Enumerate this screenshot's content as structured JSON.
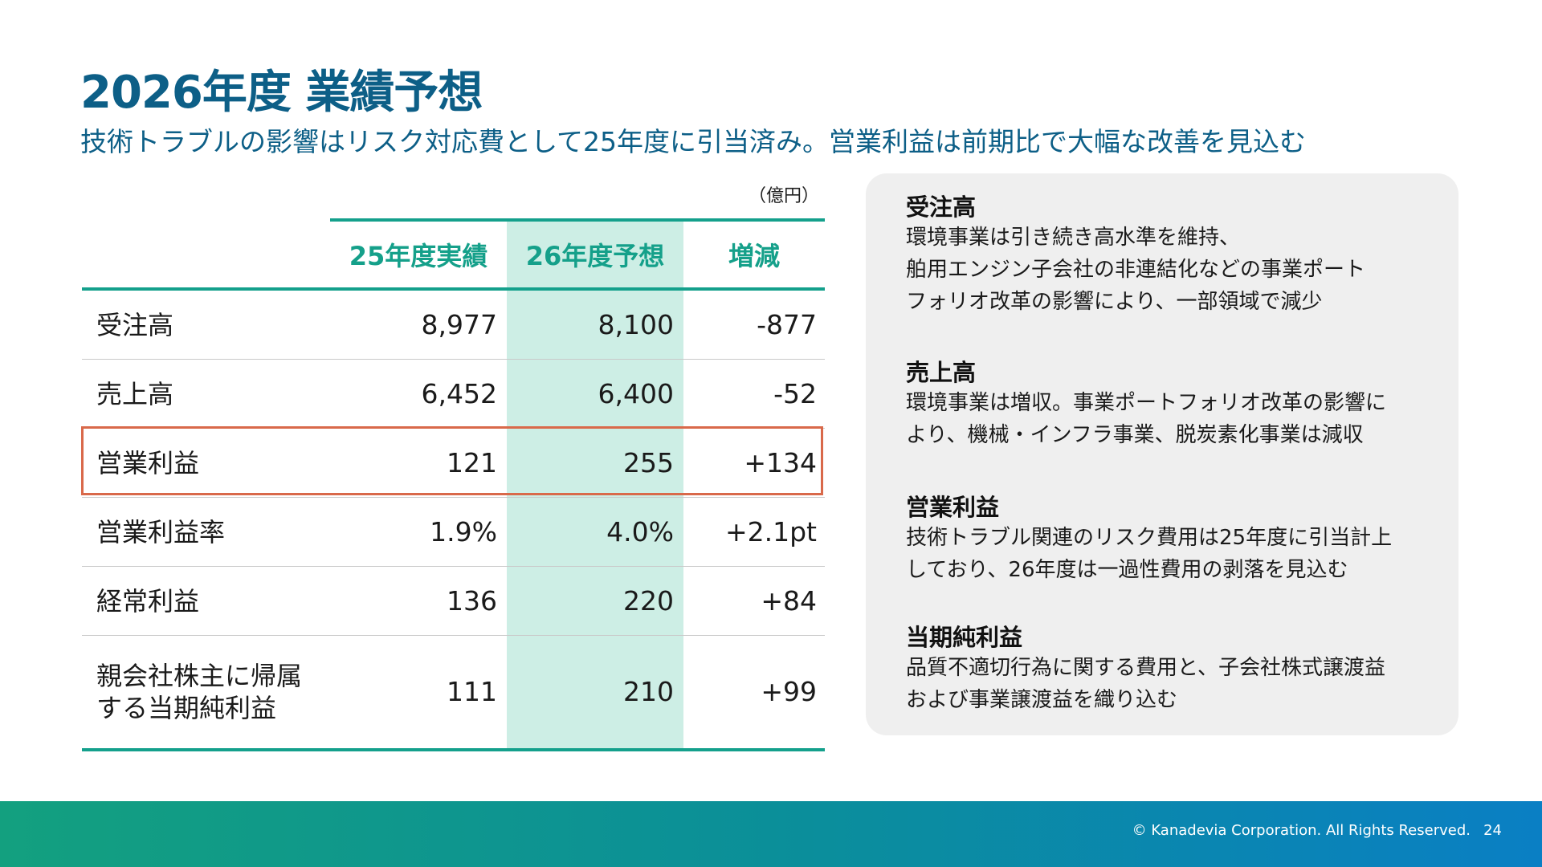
{
  "title": "2026年度 業績予想",
  "subtitle": "技術トラブルの影響はリスク対応費として25年度に引当済み。営業利益は前期比で大幅な改善を見込む",
  "unit": "（億円）",
  "table": {
    "headers": [
      "25年度実績",
      "26年度予想",
      "増減"
    ],
    "rows": [
      {
        "label": "受注高",
        "v1": "8,977",
        "v2": "8,100",
        "v3": "-877"
      },
      {
        "label": "売上高",
        "v1": "6,452",
        "v2": "6,400",
        "v3": "-52"
      },
      {
        "label": "営業利益",
        "v1": "121",
        "v2": "255",
        "v3": "+134"
      },
      {
        "label": "営業利益率",
        "v1": "1.9%",
        "v2": "4.0%",
        "v3": "+2.1pt"
      },
      {
        "label": "経常利益",
        "v1": "136",
        "v2": "220",
        "v3": "+84"
      },
      {
        "label": "親会社株主に帰属\nする当期純利益",
        "v1": "111",
        "v2": "210",
        "v3": "+99"
      }
    ]
  },
  "notes": [
    {
      "heading": "受注高",
      "body": "環境事業は引き続き高水準を維持、\n舶用エンジン子会社の非連結化などの事業ポート\nフォリオ改革の影響により、一部領域で減少"
    },
    {
      "heading": "売上高",
      "body": "環境事業は増収。事業ポートフォリオ改革の影響に\nより、機械・インフラ事業、脱炭素化事業は減収"
    },
    {
      "heading": "営業利益",
      "body": "技術トラブル関連のリスク費用は25年度に引当計上\nしており、26年度は一過性費用の剥落を見込む"
    },
    {
      "heading": "当期純利益",
      "body": "品質不適切行為に関する費用と、子会社株式譲渡益\nおよび事業譲渡益を織り込む"
    }
  ],
  "footer": {
    "copyright": "© Kanadevia Corporation. All Rights Reserved.",
    "page": "24"
  },
  "colors": {
    "title": "#0d5f87",
    "accent": "#14a08c",
    "forecast_shade": "#cdeee5",
    "highlight_border": "#d9694a",
    "panel_bg": "#efefef"
  }
}
